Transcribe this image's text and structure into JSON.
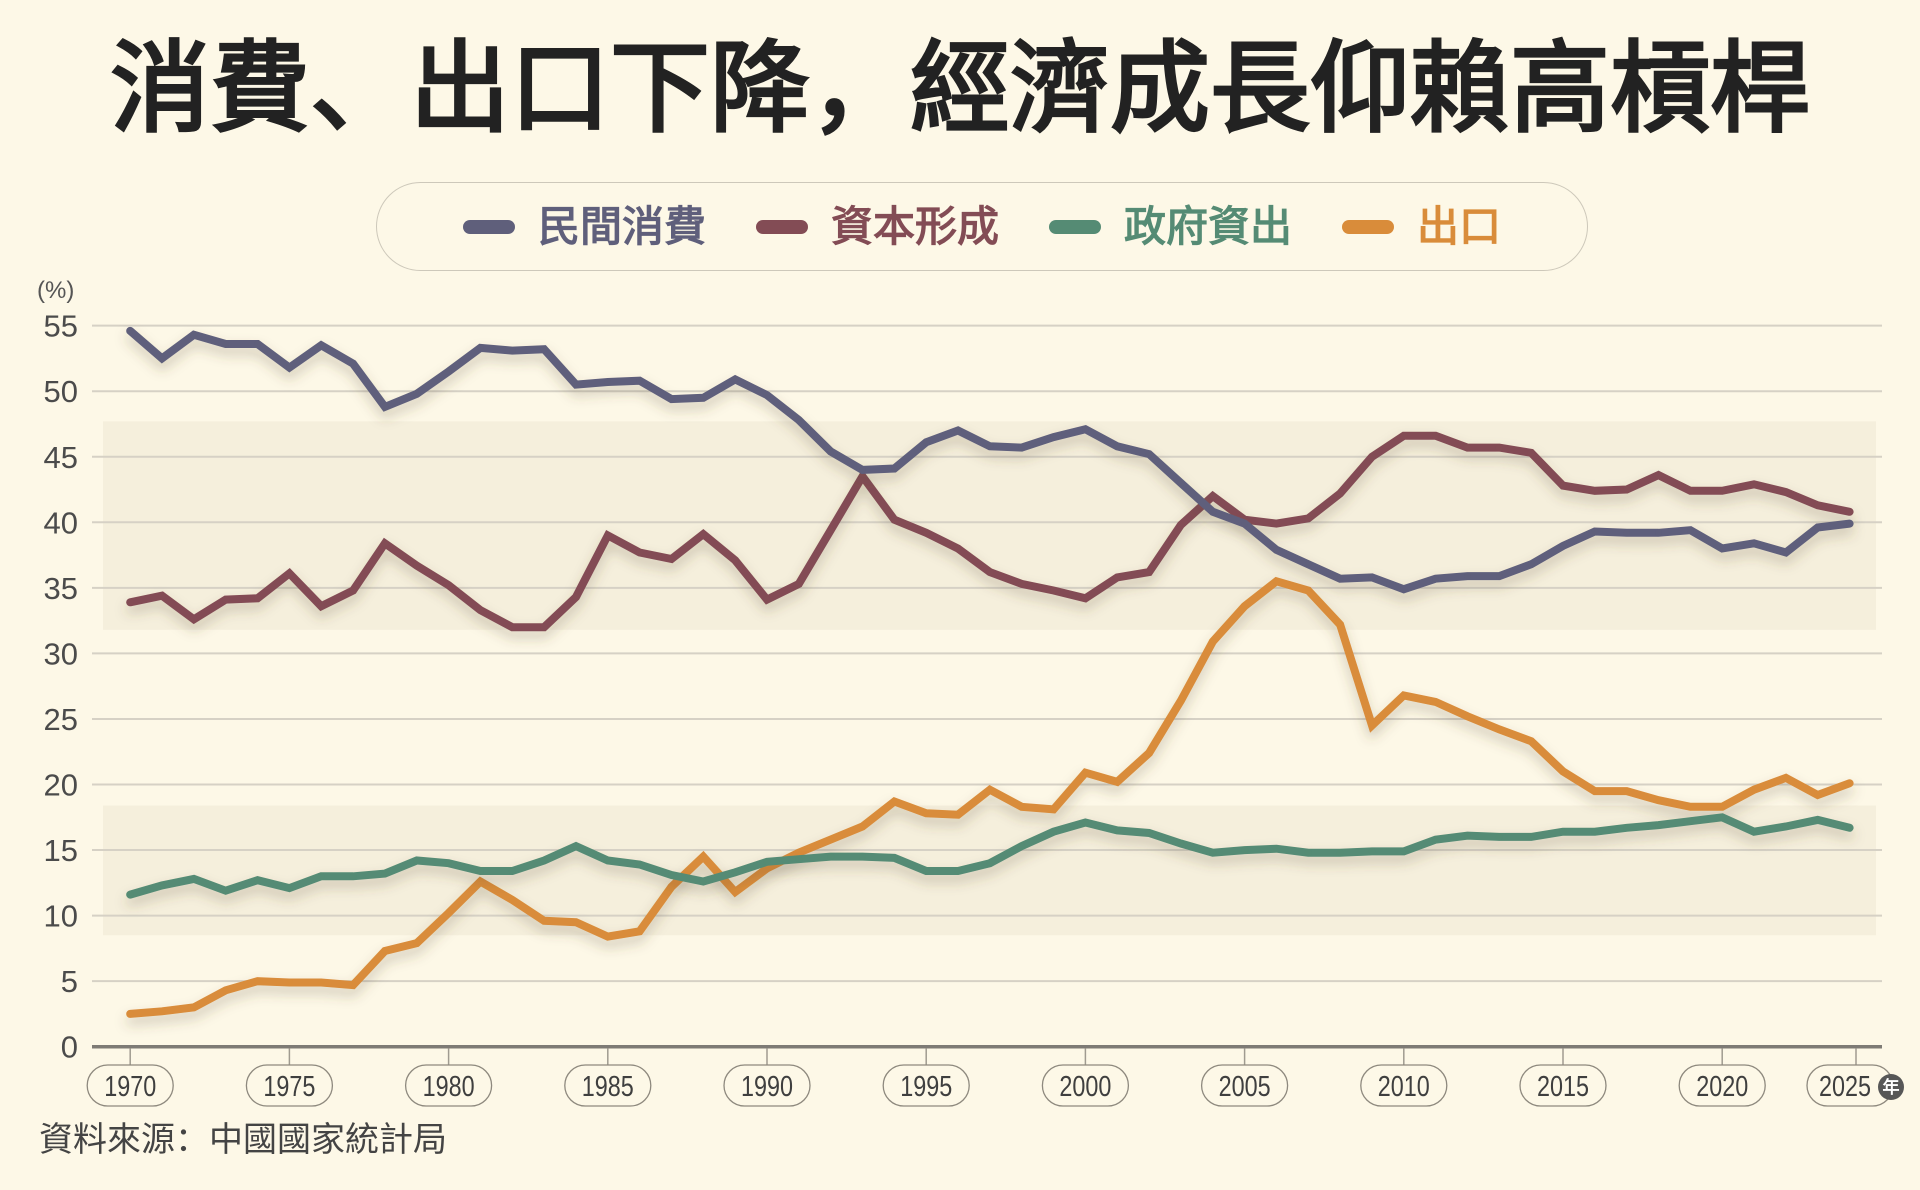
{
  "theme": {
    "background": "#fdf8e7",
    "title_color": "#222222",
    "text_color": "#444444"
  },
  "source": "資料來源：中國國家統計局",
  "chart_data": {
    "type": "line",
    "title": "消費、出口下降，經濟成長仰賴高槓桿",
    "xlabel": "年",
    "ylabel": "(%)",
    "xlim": [
      1970,
      2025
    ],
    "ylim": [
      0,
      55
    ],
    "xticks": [
      1970,
      1975,
      1980,
      1985,
      1990,
      1995,
      2000,
      2005,
      2010,
      2015,
      2020,
      2025
    ],
    "yticks": [
      0,
      5,
      10,
      15,
      20,
      25,
      30,
      35,
      40,
      45,
      50,
      55
    ],
    "grid": true,
    "legend_position": "top",
    "x": [
      1970,
      1971,
      1972,
      1973,
      1974,
      1975,
      1976,
      1977,
      1978,
      1979,
      1980,
      1981,
      1982,
      1983,
      1984,
      1985,
      1986,
      1987,
      1988,
      1989,
      1990,
      1991,
      1992,
      1993,
      1994,
      1995,
      1996,
      1997,
      1998,
      1999,
      2000,
      2001,
      2002,
      2003,
      2004,
      2005,
      2006,
      2007,
      2008,
      2009,
      2010,
      2011,
      2012,
      2013,
      2014,
      2015,
      2016,
      2017,
      2018,
      2019,
      2020,
      2021,
      2022,
      2023,
      2024
    ],
    "series": [
      {
        "name": "民間消費",
        "color": "#5f5f7b",
        "values": [
          54.6,
          52.5,
          54.3,
          53.6,
          53.6,
          51.8,
          53.5,
          52.1,
          48.8,
          49.8,
          51.5,
          53.3,
          53.1,
          53.2,
          50.5,
          50.7,
          50.8,
          49.4,
          49.5,
          50.9,
          49.7,
          47.8,
          45.4,
          44.0,
          44.1,
          46.1,
          47.0,
          45.8,
          45.7,
          46.5,
          47.1,
          45.8,
          45.2,
          43.0,
          40.8,
          39.9,
          37.9,
          36.8,
          35.7,
          35.8,
          34.9,
          35.7,
          35.9,
          35.9,
          36.8,
          38.2,
          39.3,
          39.2,
          39.2,
          39.4,
          38.0,
          38.4,
          37.7,
          39.6,
          39.9
        ]
      },
      {
        "name": "資本形成",
        "color": "#834c55",
        "values": [
          33.9,
          34.4,
          32.6,
          34.1,
          34.2,
          36.1,
          33.6,
          34.8,
          38.4,
          36.7,
          35.2,
          33.3,
          32.0,
          32.0,
          34.3,
          39.0,
          37.7,
          37.2,
          39.1,
          37.1,
          34.1,
          35.3,
          39.4,
          43.5,
          40.2,
          39.2,
          38.0,
          36.2,
          35.3,
          34.8,
          34.2,
          35.8,
          36.2,
          39.8,
          42.0,
          40.2,
          39.9,
          40.3,
          42.2,
          45.0,
          46.6,
          46.6,
          45.7,
          45.7,
          45.3,
          42.8,
          42.4,
          42.5,
          43.6,
          42.4,
          42.4,
          42.9,
          42.3,
          41.3,
          40.8
        ]
      },
      {
        "name": "政府資出",
        "color": "#558b74",
        "values": [
          11.6,
          12.3,
          12.8,
          11.9,
          12.7,
          12.1,
          13.0,
          13.0,
          13.2,
          14.2,
          14.0,
          13.4,
          13.4,
          14.2,
          15.3,
          14.2,
          13.9,
          13.1,
          12.6,
          13.3,
          14.1,
          14.3,
          14.5,
          14.5,
          14.4,
          13.4,
          13.4,
          14.0,
          15.3,
          16.4,
          17.1,
          16.5,
          16.3,
          15.5,
          14.8,
          15.0,
          15.1,
          14.8,
          14.8,
          14.9,
          14.9,
          15.8,
          16.1,
          16.0,
          16.0,
          16.4,
          16.4,
          16.7,
          16.9,
          17.2,
          17.5,
          16.4,
          16.8,
          17.3,
          16.7
        ]
      },
      {
        "name": "出口",
        "color": "#d98c3a",
        "values": [
          2.5,
          2.7,
          3.0,
          4.3,
          5.0,
          4.9,
          4.9,
          4.7,
          7.3,
          7.9,
          10.2,
          12.6,
          11.2,
          9.6,
          9.5,
          8.4,
          8.8,
          12.2,
          14.5,
          11.8,
          13.6,
          14.8,
          15.8,
          16.8,
          18.7,
          17.8,
          17.7,
          19.6,
          18.3,
          18.1,
          20.9,
          20.2,
          22.4,
          26.4,
          30.9,
          33.6,
          35.5,
          34.8,
          32.2,
          24.5,
          26.8,
          26.3,
          25.2,
          24.2,
          23.3,
          21.0,
          19.5,
          19.5,
          18.8,
          18.3,
          18.3,
          19.6,
          20.5,
          19.2,
          20.1
        ]
      }
    ]
  }
}
